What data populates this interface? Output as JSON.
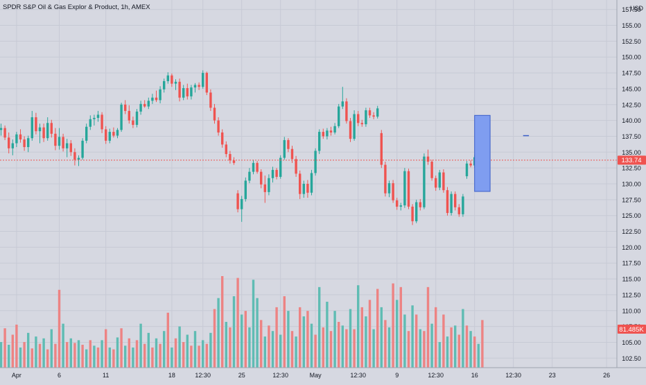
{
  "header": {
    "title": "SPDR S&P Oil & Gas Explor & Product, 1h, AMEX",
    "currency": "USD"
  },
  "colors": {
    "background": "#d6d8e1",
    "up": "#26a69a",
    "down": "#ef5350",
    "volume_up": "#5fbcb3",
    "volume_down": "#ed8383",
    "price_line": "#ef5350",
    "price_badge": "#ef5350",
    "volume_badge": "#ef5350",
    "box_fill": "#7f9df0",
    "box_stroke": "#3a5ec8",
    "grid": "#c7cad5"
  },
  "chart_data": {
    "type": "candlestick",
    "title": "SPDR S&P Oil & Gas Explor & Product, 1h, AMEX",
    "y_axis": {
      "unit": "USD",
      "range": [
        101,
        159
      ],
      "ticks": [
        "157.50",
        "155.00",
        "152.50",
        "150.00",
        "147.50",
        "145.00",
        "142.50",
        "140.00",
        "137.50",
        "135.00",
        "132.50",
        "130.00",
        "127.50",
        "125.00",
        "122.50",
        "120.00",
        "117.50",
        "115.00",
        "112.50",
        "110.00",
        "107.50",
        "105.00",
        "102.50"
      ]
    },
    "x_axis": {
      "ticks": [
        {
          "label": "Apr",
          "bar": 4
        },
        {
          "label": "6",
          "bar": 15
        },
        {
          "label": "11",
          "bar": 27
        },
        {
          "label": "18",
          "bar": 44
        },
        {
          "label": "12:30",
          "bar": 52
        },
        {
          "label": "25",
          "bar": 62
        },
        {
          "label": "12:30",
          "bar": 72
        },
        {
          "label": "May",
          "bar": 81
        },
        {
          "label": "12:30",
          "bar": 92
        },
        {
          "label": "9",
          "bar": 102
        },
        {
          "label": "12:30",
          "bar": 112
        },
        {
          "label": "16",
          "bar": 122
        },
        {
          "label": "12:30",
          "bar": 132
        },
        {
          "label": "23",
          "bar": 142
        },
        {
          "label": "26",
          "bar": 156
        }
      ]
    },
    "last_price": 133.74,
    "last_price_label": "133.74",
    "last_volume_label": "81.485K",
    "projection_box": {
      "bar_start": 122,
      "bar_end": 126,
      "price_low": 128.8,
      "price_high": 140.8
    },
    "marker": {
      "bar_start": 134.5,
      "bar_end": 136,
      "price": 137.6
    },
    "candles": [
      [
        138.5,
        139.5,
        137.6,
        138.8
      ],
      [
        138.8,
        139.2,
        136.9,
        137.3
      ],
      [
        137.3,
        138.1,
        134.8,
        135.6
      ],
      [
        135.6,
        137.0,
        134.5,
        136.4
      ],
      [
        136.4,
        138.2,
        135.8,
        137.8
      ],
      [
        137.8,
        138.6,
        136.5,
        137.0
      ],
      [
        137.0,
        137.5,
        135.2,
        135.8
      ],
      [
        135.8,
        137.6,
        135.0,
        137.2
      ],
      [
        137.2,
        141.5,
        136.8,
        140.5
      ],
      [
        140.5,
        141.2,
        137.8,
        138.3
      ],
      [
        138.3,
        139.5,
        136.4,
        138.9
      ],
      [
        138.9,
        139.5,
        136.6,
        137.2
      ],
      [
        137.2,
        140.5,
        136.8,
        139.6
      ],
      [
        139.6,
        140.1,
        137.3,
        137.9
      ],
      [
        137.9,
        138.8,
        135.3,
        136.0
      ],
      [
        136.0,
        138.8,
        135.4,
        137.4
      ],
      [
        137.4,
        137.9,
        135.1,
        135.6
      ],
      [
        135.6,
        137.1,
        134.2,
        136.4
      ],
      [
        136.4,
        136.9,
        134.4,
        135.0
      ],
      [
        135.0,
        135.6,
        132.9,
        133.8
      ],
      [
        133.8,
        134.5,
        132.8,
        134.1
      ],
      [
        134.1,
        137.2,
        133.8,
        136.8
      ],
      [
        136.8,
        139.5,
        136.4,
        139.0
      ],
      [
        139.0,
        140.8,
        138.5,
        140.2
      ],
      [
        140.2,
        140.9,
        139.2,
        140.4
      ],
      [
        140.4,
        141.5,
        139.8,
        140.9
      ],
      [
        140.9,
        141.3,
        138.0,
        138.6
      ],
      [
        138.6,
        139.1,
        136.3,
        136.8
      ],
      [
        136.8,
        138.7,
        136.4,
        138.2
      ],
      [
        138.2,
        138.9,
        137.3,
        137.6
      ],
      [
        137.6,
        138.8,
        137.2,
        138.5
      ],
      [
        138.5,
        142.8,
        138.2,
        142.5
      ],
      [
        142.5,
        143.2,
        141.0,
        141.5
      ],
      [
        141.5,
        142.4,
        139.5,
        140.0
      ],
      [
        140.0,
        140.6,
        138.8,
        139.3
      ],
      [
        139.3,
        141.8,
        138.9,
        141.4
      ],
      [
        141.4,
        143.1,
        140.9,
        142.6
      ],
      [
        142.6,
        143.2,
        142.0,
        142.2
      ],
      [
        142.2,
        143.6,
        141.8,
        143.1
      ],
      [
        143.1,
        144.2,
        142.6,
        143.6
      ],
      [
        143.6,
        144.7,
        142.9,
        143.2
      ],
      [
        143.2,
        145.4,
        142.7,
        144.9
      ],
      [
        144.9,
        146.6,
        144.4,
        146.2
      ],
      [
        146.2,
        147.6,
        145.8,
        147.1
      ],
      [
        147.1,
        147.4,
        145.3,
        145.8
      ],
      [
        145.8,
        146.5,
        144.8,
        146.1
      ],
      [
        146.1,
        146.6,
        143.0,
        143.6
      ],
      [
        143.6,
        145.6,
        143.2,
        145.1
      ],
      [
        145.1,
        145.8,
        143.3,
        143.8
      ],
      [
        143.8,
        145.6,
        143.3,
        145.2
      ],
      [
        145.2,
        145.9,
        144.4,
        145.6
      ],
      [
        145.6,
        146.0,
        144.8,
        145.3
      ],
      [
        145.3,
        147.9,
        145.0,
        147.5
      ],
      [
        147.5,
        147.7,
        144.0,
        144.4
      ],
      [
        144.4,
        144.9,
        141.5,
        142.0
      ],
      [
        142.0,
        142.6,
        139.5,
        140.0
      ],
      [
        140.0,
        140.5,
        137.6,
        138.1
      ],
      [
        138.1,
        138.6,
        135.7,
        136.2
      ],
      [
        136.2,
        136.7,
        134.2,
        134.7
      ],
      [
        134.7,
        135.2,
        133.2,
        133.7
      ],
      [
        133.7,
        134.2,
        133.0,
        133.3
      ],
      [
        128.5,
        129.0,
        125.5,
        126.0
      ],
      [
        126.0,
        128.1,
        124.0,
        127.6
      ],
      [
        127.6,
        131.0,
        127.2,
        130.5
      ],
      [
        130.5,
        132.5,
        130.1,
        131.9
      ],
      [
        131.9,
        133.8,
        131.5,
        133.3
      ],
      [
        133.3,
        133.6,
        131.6,
        131.9
      ],
      [
        131.9,
        132.3,
        129.3,
        129.9
      ],
      [
        129.9,
        131.3,
        127.0,
        128.7
      ],
      [
        128.7,
        131.5,
        128.2,
        130.9
      ],
      [
        130.9,
        132.7,
        130.2,
        132.2
      ],
      [
        132.2,
        132.5,
        130.7,
        131.1
      ],
      [
        131.1,
        134.5,
        130.8,
        134.1
      ],
      [
        134.1,
        137.4,
        133.8,
        136.9
      ],
      [
        136.9,
        137.2,
        135.0,
        135.5
      ],
      [
        135.5,
        136.0,
        133.3,
        133.9
      ],
      [
        133.9,
        134.4,
        131.1,
        131.6
      ],
      [
        131.6,
        132.1,
        127.6,
        128.4
      ],
      [
        128.4,
        130.5,
        127.8,
        130.0
      ],
      [
        130.0,
        130.6,
        127.8,
        128.6
      ],
      [
        128.6,
        132.2,
        128.2,
        131.7
      ],
      [
        131.7,
        135.6,
        131.3,
        135.2
      ],
      [
        135.2,
        138.6,
        134.7,
        138.2
      ],
      [
        138.2,
        138.7,
        137.1,
        137.5
      ],
      [
        137.5,
        138.8,
        137.0,
        138.4
      ],
      [
        138.4,
        139.0,
        137.6,
        138.1
      ],
      [
        138.1,
        139.6,
        137.8,
        139.1
      ],
      [
        139.1,
        142.6,
        138.8,
        142.2
      ],
      [
        142.2,
        145.3,
        141.8,
        143.0
      ],
      [
        143.0,
        143.5,
        139.5,
        139.9
      ],
      [
        139.9,
        140.4,
        136.6,
        137.1
      ],
      [
        137.1,
        141.6,
        136.8,
        141.0
      ],
      [
        141.0,
        141.5,
        139.1,
        139.6
      ],
      [
        139.6,
        140.1,
        139.0,
        139.4
      ],
      [
        139.4,
        142.0,
        139.0,
        141.6
      ],
      [
        141.6,
        142.0,
        140.4,
        140.8
      ],
      [
        140.8,
        141.3,
        140.2,
        140.6
      ],
      [
        140.6,
        142.3,
        140.3,
        141.9
      ],
      [
        138.0,
        138.5,
        132.5,
        133.0
      ],
      [
        133.0,
        133.5,
        128.0,
        128.5
      ],
      [
        128.5,
        130.5,
        127.9,
        130.1
      ],
      [
        130.1,
        130.6,
        127.0,
        127.4
      ],
      [
        127.4,
        127.8,
        125.9,
        126.4
      ],
      [
        126.4,
        127.0,
        125.8,
        126.6
      ],
      [
        126.6,
        132.5,
        126.2,
        132.0
      ],
      [
        132.0,
        132.4,
        126.0,
        126.4
      ],
      [
        126.4,
        126.8,
        123.5,
        124.1
      ],
      [
        124.1,
        127.5,
        123.8,
        127.1
      ],
      [
        127.1,
        127.6,
        125.8,
        126.3
      ],
      [
        126.3,
        134.8,
        126.0,
        134.3
      ],
      [
        134.3,
        135.4,
        133.0,
        133.5
      ],
      [
        133.5,
        133.8,
        130.5,
        130.9
      ],
      [
        130.9,
        131.3,
        128.9,
        129.4
      ],
      [
        129.4,
        132.2,
        129.0,
        131.8
      ],
      [
        131.8,
        132.3,
        128.6,
        129.0
      ],
      [
        129.0,
        129.5,
        125.0,
        125.4
      ],
      [
        125.4,
        128.8,
        125.0,
        128.4
      ],
      [
        128.4,
        128.8,
        125.8,
        126.3
      ],
      [
        126.3,
        126.8,
        124.8,
        125.2
      ],
      [
        125.2,
        128.4,
        124.8,
        128.0
      ],
      [
        131.2,
        133.6,
        130.8,
        133.2
      ],
      [
        133.2,
        133.7,
        132.6,
        132.9
      ],
      [
        132.9,
        134.6,
        132.5,
        134.2
      ],
      [
        134.2,
        134.5,
        132.3,
        133.0
      ],
      [
        133.0,
        134.2,
        132.6,
        133.74
      ]
    ],
    "volumes": [
      [
        0.28,
        1
      ],
      [
        0.43,
        0
      ],
      [
        0.25,
        1
      ],
      [
        0.36,
        0
      ],
      [
        0.47,
        0
      ],
      [
        0.22,
        1
      ],
      [
        0.28,
        0
      ],
      [
        0.38,
        1
      ],
      [
        0.21,
        0
      ],
      [
        0.34,
        1
      ],
      [
        0.26,
        0
      ],
      [
        0.32,
        1
      ],
      [
        0.2,
        0
      ],
      [
        0.42,
        1
      ],
      [
        0.26,
        0
      ],
      [
        0.85,
        0
      ],
      [
        0.48,
        1
      ],
      [
        0.28,
        0
      ],
      [
        0.32,
        1
      ],
      [
        0.27,
        0
      ],
      [
        0.3,
        1
      ],
      [
        0.25,
        0
      ],
      [
        0.2,
        1
      ],
      [
        0.3,
        0
      ],
      [
        0.24,
        1
      ],
      [
        0.22,
        0
      ],
      [
        0.3,
        1
      ],
      [
        0.42,
        0
      ],
      [
        0.22,
        1
      ],
      [
        0.2,
        0
      ],
      [
        0.33,
        1
      ],
      [
        0.43,
        0
      ],
      [
        0.24,
        1
      ],
      [
        0.32,
        0
      ],
      [
        0.22,
        1
      ],
      [
        0.3,
        0
      ],
      [
        0.48,
        1
      ],
      [
        0.26,
        0
      ],
      [
        0.38,
        1
      ],
      [
        0.22,
        0
      ],
      [
        0.32,
        1
      ],
      [
        0.26,
        0
      ],
      [
        0.4,
        1
      ],
      [
        0.6,
        0
      ],
      [
        0.22,
        1
      ],
      [
        0.32,
        0
      ],
      [
        0.45,
        1
      ],
      [
        0.28,
        0
      ],
      [
        0.36,
        1
      ],
      [
        0.24,
        0
      ],
      [
        0.4,
        1
      ],
      [
        0.24,
        0
      ],
      [
        0.3,
        1
      ],
      [
        0.26,
        0
      ],
      [
        0.38,
        1
      ],
      [
        0.64,
        0
      ],
      [
        0.76,
        1
      ],
      [
        1.0,
        0
      ],
      [
        0.5,
        1
      ],
      [
        0.44,
        0
      ],
      [
        0.78,
        1
      ],
      [
        0.98,
        0
      ],
      [
        0.58,
        1
      ],
      [
        0.62,
        0
      ],
      [
        0.44,
        1
      ],
      [
        0.96,
        1
      ],
      [
        0.76,
        1
      ],
      [
        0.52,
        0
      ],
      [
        0.34,
        1
      ],
      [
        0.46,
        0
      ],
      [
        0.4,
        1
      ],
      [
        0.66,
        0
      ],
      [
        0.36,
        1
      ],
      [
        0.78,
        0
      ],
      [
        0.62,
        1
      ],
      [
        0.4,
        0
      ],
      [
        0.34,
        1
      ],
      [
        0.66,
        0
      ],
      [
        0.56,
        1
      ],
      [
        0.62,
        0
      ],
      [
        0.48,
        1
      ],
      [
        0.36,
        0
      ],
      [
        0.88,
        1
      ],
      [
        0.44,
        0
      ],
      [
        0.72,
        1
      ],
      [
        0.4,
        0
      ],
      [
        0.62,
        1
      ],
      [
        0.5,
        0
      ],
      [
        0.46,
        1
      ],
      [
        0.42,
        0
      ],
      [
        0.64,
        1
      ],
      [
        0.42,
        0
      ],
      [
        0.9,
        1
      ],
      [
        0.66,
        0
      ],
      [
        0.56,
        1
      ],
      [
        0.74,
        0
      ],
      [
        0.42,
        1
      ],
      [
        0.86,
        0
      ],
      [
        0.66,
        1
      ],
      [
        0.52,
        0
      ],
      [
        0.44,
        1
      ],
      [
        0.92,
        0
      ],
      [
        0.74,
        1
      ],
      [
        0.88,
        0
      ],
      [
        0.58,
        1
      ],
      [
        0.4,
        0
      ],
      [
        0.68,
        1
      ],
      [
        0.58,
        0
      ],
      [
        0.42,
        1
      ],
      [
        0.4,
        0
      ],
      [
        0.88,
        0
      ],
      [
        0.48,
        1
      ],
      [
        0.66,
        0
      ],
      [
        0.28,
        1
      ],
      [
        0.58,
        0
      ],
      [
        0.34,
        1
      ],
      [
        0.44,
        0
      ],
      [
        0.46,
        1
      ],
      [
        0.36,
        0
      ],
      [
        0.64,
        1
      ],
      [
        0.46,
        0
      ],
      [
        0.4,
        1
      ],
      [
        0.34,
        0
      ],
      [
        0.26,
        1
      ],
      [
        0.52,
        0
      ]
    ]
  }
}
